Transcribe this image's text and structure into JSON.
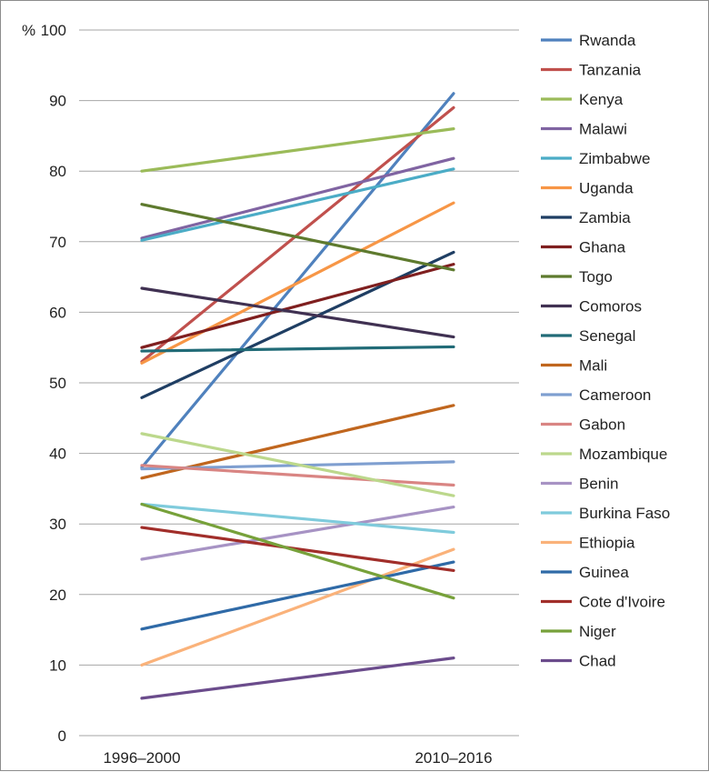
{
  "chart_data": {
    "type": "line",
    "y_unit_label": "%",
    "ylim": [
      0,
      100
    ],
    "y_ticks": [
      "0",
      "10",
      "20",
      "30",
      "40",
      "50",
      "60",
      "70",
      "80",
      "90",
      "100"
    ],
    "categories": [
      "1996–2000",
      "2010–2016"
    ],
    "grid": "horizontal",
    "legend_position": "right",
    "series": [
      {
        "name": "Rwanda",
        "color": "#4f81bd",
        "values": [
          38,
          91
        ]
      },
      {
        "name": "Tanzania",
        "color": "#c0504d",
        "values": [
          53,
          89
        ]
      },
      {
        "name": "Kenya",
        "color": "#9bbb59",
        "values": [
          80,
          86
        ]
      },
      {
        "name": "Malawi",
        "color": "#8064a2",
        "values": [
          70.5,
          81.8
        ]
      },
      {
        "name": "Zimbabwe",
        "color": "#4bacc6",
        "values": [
          70.2,
          80.3
        ]
      },
      {
        "name": "Uganda",
        "color": "#f79646",
        "values": [
          52.8,
          75.5
        ]
      },
      {
        "name": "Zambia",
        "color": "#1f3e63",
        "values": [
          47.9,
          68.5
        ]
      },
      {
        "name": "Ghana",
        "color": "#7f1f1f",
        "values": [
          55,
          66.8
        ]
      },
      {
        "name": "Togo",
        "color": "#5e7a2e",
        "values": [
          75.3,
          66
        ]
      },
      {
        "name": "Comoros",
        "color": "#403152",
        "values": [
          63.4,
          56.5
        ]
      },
      {
        "name": "Senegal",
        "color": "#216b77",
        "values": [
          54.5,
          55.1
        ]
      },
      {
        "name": "Mali",
        "color": "#c0661e",
        "values": [
          36.5,
          46.8
        ]
      },
      {
        "name": "Cameroon",
        "color": "#7f9fd0",
        "values": [
          37.8,
          38.8
        ]
      },
      {
        "name": "Gabon",
        "color": "#d98583",
        "values": [
          38.3,
          35.5
        ]
      },
      {
        "name": "Mozambique",
        "color": "#bcd88c",
        "values": [
          42.8,
          34
        ]
      },
      {
        "name": "Benin",
        "color": "#a793c4",
        "values": [
          25,
          32.4
        ]
      },
      {
        "name": "Burkina Faso",
        "color": "#7fcbdc",
        "values": [
          32.8,
          28.8
        ]
      },
      {
        "name": "Ethiopia",
        "color": "#fab27a",
        "values": [
          10,
          26.4
        ]
      },
      {
        "name": "Guinea",
        "color": "#2f6aa7",
        "values": [
          15.1,
          24.6
        ]
      },
      {
        "name": "Cote d'Ivoire",
        "color": "#a12e2a",
        "values": [
          29.5,
          23.4
        ]
      },
      {
        "name": "Niger",
        "color": "#77a13a",
        "values": [
          32.8,
          19.5
        ]
      },
      {
        "name": "Chad",
        "color": "#6b4c8c",
        "values": [
          5.3,
          11
        ]
      }
    ]
  }
}
